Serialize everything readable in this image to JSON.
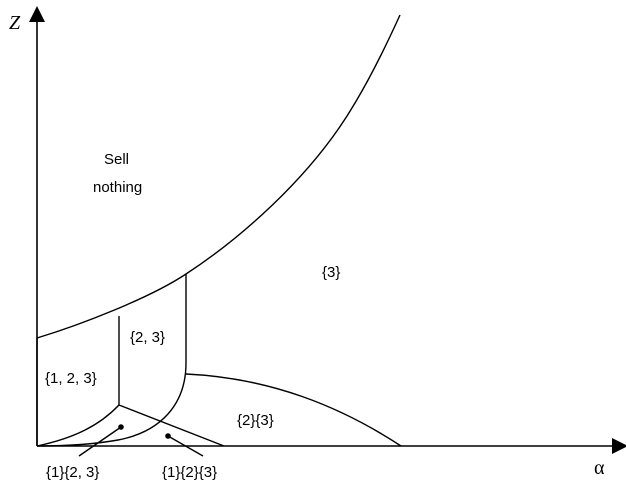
{
  "axes": {
    "y_label": "Z",
    "x_label": "α"
  },
  "regions": {
    "sell_nothing_line1": "Sell",
    "sell_nothing_line2": "nothing",
    "r3": "{3}",
    "r23": "{2, 3}",
    "r123": "{1, 2, 3}",
    "r2_3": "{2}{3}",
    "r1_23": "{1}{2, 3}",
    "r1_2_3": "{1}{2}{3}"
  }
}
